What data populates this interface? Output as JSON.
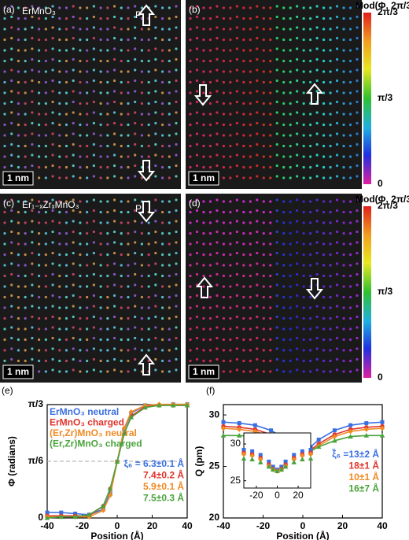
{
  "panels": [
    {
      "label": "(a)",
      "title": "ErMnO₃",
      "polarization": "P",
      "scale_bar": "1 nm"
    },
    {
      "label": "(b)",
      "scale_bar": "1 nm"
    },
    {
      "label": "(c)",
      "title": "Er₁₋ₓZrₓMnO₃",
      "polarization": "P",
      "scale_bar": "1 nm"
    },
    {
      "label": "(d)",
      "scale_bar": "1 nm"
    }
  ],
  "colorbars": [
    {
      "title": "Mod(Φ, 2π/3)",
      "ticks": [
        "2π/3",
        "π/3",
        "0"
      ]
    },
    {
      "title": "Mod(Φ, 2π/3)",
      "ticks": [
        "2π/3",
        "π/3",
        "0"
      ]
    }
  ],
  "chart_data": [
    {
      "type": "line",
      "label": "(e)",
      "xlabel": "Position (Å)",
      "ylabel": "Φ (radians)",
      "x": [
        -40,
        -32,
        -24,
        -16,
        -8,
        -4,
        0,
        4,
        8,
        16,
        24,
        32,
        40
      ],
      "xlim": [
        -40,
        40
      ],
      "xticks": [
        -40,
        -20,
        0,
        20,
        40
      ],
      "ylim": [
        0,
        1.0472
      ],
      "yticks": [
        0,
        {
          "value": 0.5236,
          "label": "π/6"
        },
        {
          "value": 1.0472,
          "label": "π/3"
        }
      ],
      "hline": 0.5236,
      "series": [
        {
          "name": "ErMnO₃ neutral",
          "color": "#3a6fe0",
          "marker": "square",
          "values": [
            0.05,
            0.05,
            0.04,
            0.03,
            0.08,
            0.23,
            0.52,
            0.82,
            0.97,
            1.04,
            1.04,
            1.05,
            1.05
          ]
        },
        {
          "name": "ErMnO₃ charged",
          "color": "#e0332b",
          "marker": "circle",
          "values": [
            0.02,
            0.02,
            0.02,
            0.02,
            0.11,
            0.27,
            0.52,
            0.78,
            0.94,
            1.03,
            1.04,
            1.04,
            1.04
          ]
        },
        {
          "name": "(Er,Zr)MnO₃ neutral",
          "color": "#f08a24",
          "marker": "diamond",
          "values": [
            0.01,
            0.01,
            0.01,
            0.01,
            0.07,
            0.21,
            0.52,
            0.83,
            0.98,
            1.04,
            1.05,
            1.05,
            1.05
          ]
        },
        {
          "name": "(Er,Zr)MnO₃ charged",
          "color": "#4aa33c",
          "marker": "triangle",
          "values": [
            0.0,
            0.01,
            0.01,
            0.03,
            0.11,
            0.27,
            0.52,
            0.78,
            0.93,
            1.02,
            1.04,
            1.04,
            1.04
          ]
        }
      ],
      "annotations": [
        "ξ₆ = 6.3±0.1 Å",
        "7.4±0.2 Å",
        "5.9±0.1 Å",
        "7.5±0.3 Å"
      ]
    },
    {
      "type": "line",
      "label": "(f)",
      "xlabel": "Position (Å)",
      "ylabel": "Q (pm)",
      "x": [
        -40,
        -32,
        -24,
        -16,
        -8,
        -4,
        0,
        4,
        8,
        16,
        24,
        32,
        40
      ],
      "xlim": [
        -40,
        40
      ],
      "xticks": [
        -40,
        -20,
        0,
        20,
        40
      ],
      "ylim": [
        20,
        31
      ],
      "yticks": [
        20,
        25,
        30
      ],
      "series": [
        {
          "color": "#3a6fe0",
          "marker": "square",
          "values": [
            29.3,
            29.2,
            29.0,
            28.5,
            27.6,
            26.9,
            26.5,
            26.9,
            27.6,
            28.5,
            29.0,
            29.2,
            29.3
          ]
        },
        {
          "color": "#e0332b",
          "marker": "circle",
          "values": [
            28.9,
            28.8,
            28.6,
            28.1,
            27.2,
            26.6,
            26.3,
            26.6,
            27.2,
            28.1,
            28.6,
            28.8,
            28.9
          ]
        },
        {
          "color": "#f08a24",
          "marker": "diamond",
          "values": [
            28.7,
            28.6,
            28.4,
            27.9,
            27.0,
            26.5,
            26.3,
            26.5,
            27.0,
            27.9,
            28.4,
            28.6,
            28.7
          ]
        },
        {
          "color": "#4aa33c",
          "marker": "triangle",
          "values": [
            28.0,
            28.0,
            27.9,
            27.5,
            26.9,
            26.5,
            26.3,
            26.5,
            26.9,
            27.5,
            27.9,
            28.0,
            28.0
          ]
        }
      ],
      "annotations": [
        "ξ̃₆ =13±2 Å",
        "18±1 Å",
        "10±1 Å",
        "16±7 Å"
      ],
      "inset": {
        "xlim": [
          -32,
          32
        ],
        "xticks": [
          -20,
          0,
          20
        ],
        "ylim": [
          24,
          31.5
        ],
        "yticks": [
          25,
          30
        ]
      }
    }
  ]
}
